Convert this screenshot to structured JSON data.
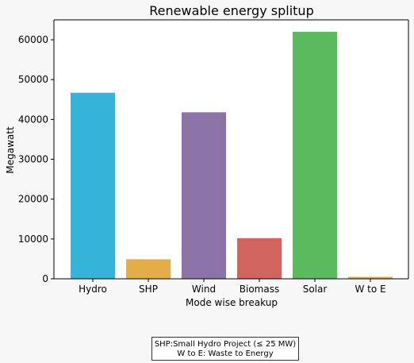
{
  "chart_data": {
    "type": "bar",
    "title": "Renewable energy splitup",
    "xlabel": "Mode wise breakup",
    "ylabel": "Megawatt",
    "categories": [
      "Hydro",
      "SHP",
      "Wind",
      "Biomass",
      "Solar",
      "W to E"
    ],
    "values": [
      46700,
      4900,
      41800,
      10200,
      62000,
      500
    ],
    "colors": [
      "#36b3d9",
      "#e5ad47",
      "#8c74a8",
      "#d1645e",
      "#5cba5e",
      "#e5ad47"
    ],
    "ylim": [
      0,
      65000
    ],
    "yticks": [
      0,
      10000,
      20000,
      30000,
      40000,
      50000,
      60000
    ],
    "grid": false,
    "legend": "none"
  },
  "notes": [
    "SHP:Small Hydro Project (≤ 25 MW)",
    "W to E: Waste to Energy"
  ]
}
